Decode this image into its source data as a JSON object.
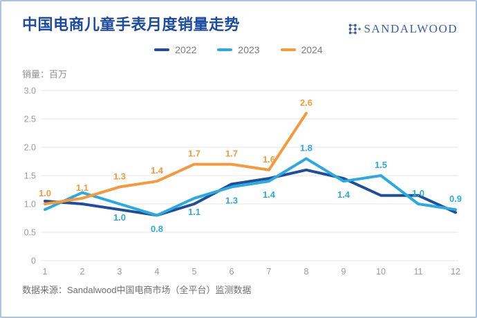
{
  "page": {
    "title": "中国电商儿童手表月度销量走势",
    "brand": {
      "name": "SANDALWOOD",
      "icon": "dots-network-icon"
    },
    "source": "数据来源：Sandalwood中国电商市场（全平台）监测数据"
  },
  "colors": {
    "title": "#1c4ba1",
    "brand": "#3a5fa8",
    "border": "#a9c3e3",
    "grid": "#ebebeb",
    "axis_text": "#9b9b9b",
    "legend_text": "#7c7c7c",
    "source_text": "#707070",
    "series_2022": "#1f4e9c",
    "series_2023": "#29abe2",
    "series_2024": "#f7983a"
  },
  "chart_data": {
    "type": "line",
    "title": "中国电商儿童手表月度销量走势",
    "unit_label": "销量：百万",
    "x": [
      1,
      2,
      3,
      4,
      5,
      6,
      7,
      8,
      9,
      10,
      11,
      12
    ],
    "ylim": [
      0,
      3.0
    ],
    "yticks": [
      "0",
      "0.5",
      "1.0",
      "1.5",
      "2.0",
      "2.5",
      "3.0"
    ],
    "grid": "horizontal-only",
    "legend_position": "top-center",
    "series": [
      {
        "name": "2022",
        "color": "#1f4e9c",
        "values": [
          1.05,
          1.0,
          0.9,
          0.8,
          1.0,
          1.35,
          1.45,
          1.6,
          1.45,
          1.15,
          1.15,
          0.85
        ],
        "labels": [
          null,
          null,
          null,
          null,
          null,
          null,
          null,
          null,
          null,
          null,
          null,
          null
        ],
        "label_pos": [
          null,
          null,
          null,
          null,
          null,
          null,
          null,
          null,
          null,
          null,
          null,
          null
        ]
      },
      {
        "name": "2023",
        "color": "#29abe2",
        "values": [
          0.9,
          1.2,
          1.0,
          0.8,
          1.1,
          1.3,
          1.4,
          1.8,
          1.4,
          1.5,
          1.0,
          0.9
        ],
        "labels": [
          null,
          null,
          "1.0",
          "0.8",
          "1.1",
          "1.3",
          "1.4",
          "1.8",
          "1.4",
          "1.5",
          "1.0",
          "0.9"
        ],
        "label_pos": [
          null,
          null,
          "below",
          "below",
          "below",
          "below",
          "below",
          "above",
          "below",
          "above",
          "above",
          "above"
        ]
      },
      {
        "name": "2024",
        "color": "#f7983a",
        "values": [
          1.0,
          1.1,
          1.3,
          1.4,
          1.7,
          1.7,
          1.6,
          2.6,
          null,
          null,
          null,
          null
        ],
        "labels": [
          "1.0",
          "1.1",
          "1.3",
          "1.4",
          "1.7",
          "1.7",
          "1.6",
          "2.6",
          null,
          null,
          null,
          null
        ],
        "label_pos": [
          "above",
          "above",
          "above",
          "above",
          "above",
          "above",
          "above",
          "above",
          null,
          null,
          null,
          null
        ]
      }
    ]
  }
}
